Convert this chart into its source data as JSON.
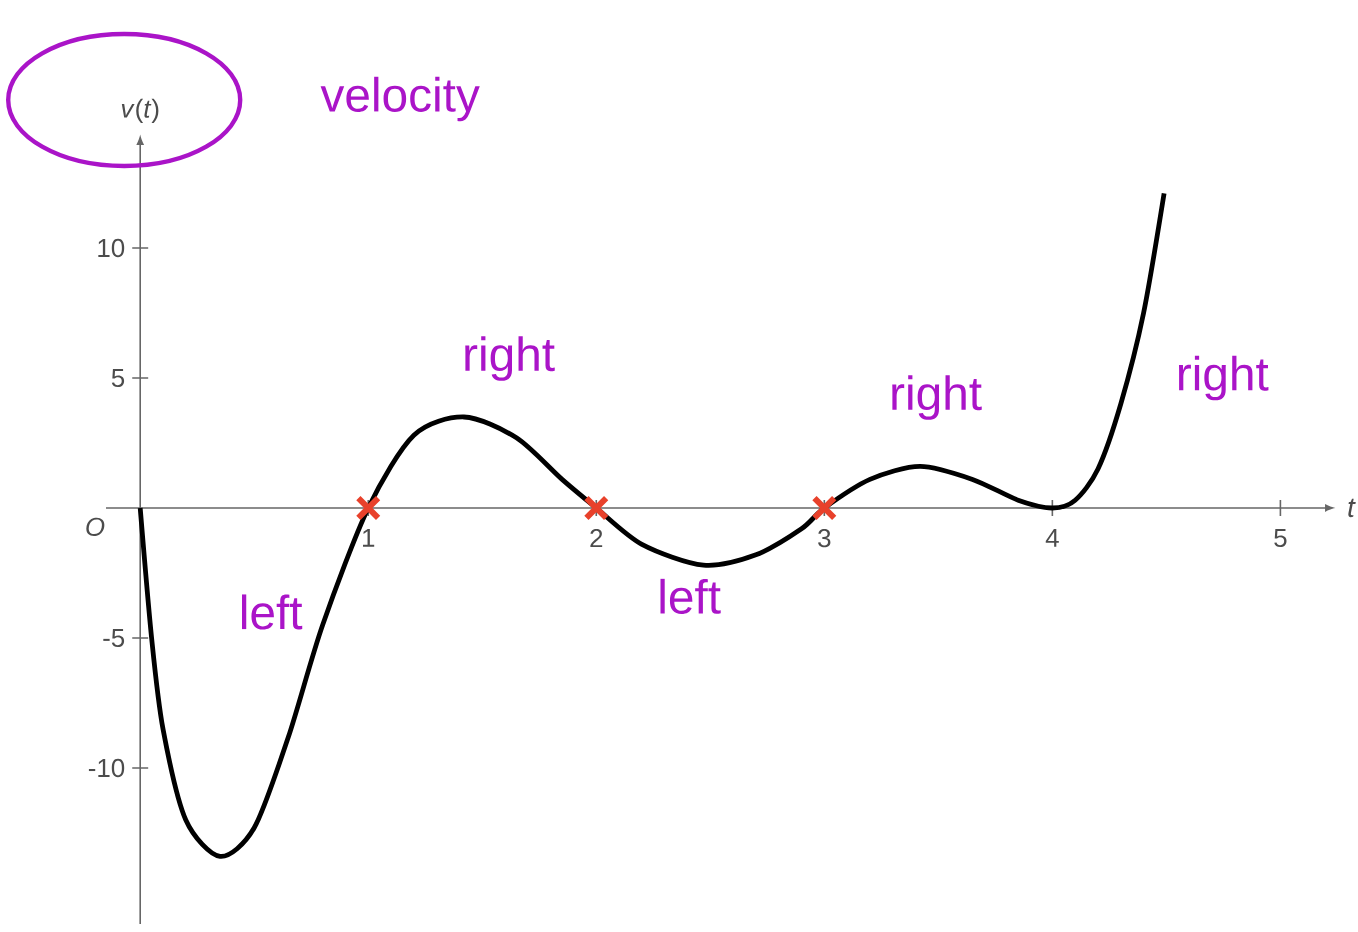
{
  "chart_data": {
    "type": "line",
    "xlabel": "t",
    "ylabel": "*v*(*t*)",
    "xlim": [
      -0.15,
      5.2
    ],
    "ylim": [
      -16,
      14
    ],
    "xticks": [
      1,
      2,
      3,
      4,
      5
    ],
    "yticks": [
      -10,
      -5,
      5,
      10
    ],
    "grid": false,
    "series": [
      {
        "color": "#000000",
        "line_style": "solid",
        "x": [
          0,
          0.05,
          0.1,
          0.2,
          0.35,
          0.5,
          0.65,
          0.8,
          1,
          1.2,
          1.42,
          1.65,
          1.85,
          2,
          2.2,
          2.47,
          2.7,
          2.9,
          3,
          3.2,
          3.42,
          3.65,
          3.85,
          4,
          4.1,
          4.2,
          4.3,
          4.4,
          4.49
        ],
        "values": [
          0,
          -5,
          -8.5,
          -12,
          -13.4,
          -12.3,
          -8.8,
          -4.5,
          0,
          2.8,
          3.5,
          2.7,
          1.1,
          0,
          -1.4,
          -2.2,
          -1.8,
          -0.8,
          0,
          1.1,
          1.6,
          1.1,
          0.3,
          0,
          0.3,
          1.5,
          4,
          7.5,
          12.1
        ]
      },
      {
        "type": "scatter",
        "marker": "cross",
        "color": "#e8412b",
        "x": [
          1,
          2,
          3
        ],
        "values": [
          0,
          0,
          0
        ]
      }
    ],
    "annotations": [
      "O",
      "velocity",
      "left",
      "right",
      "left",
      "right",
      "right"
    ]
  }
}
